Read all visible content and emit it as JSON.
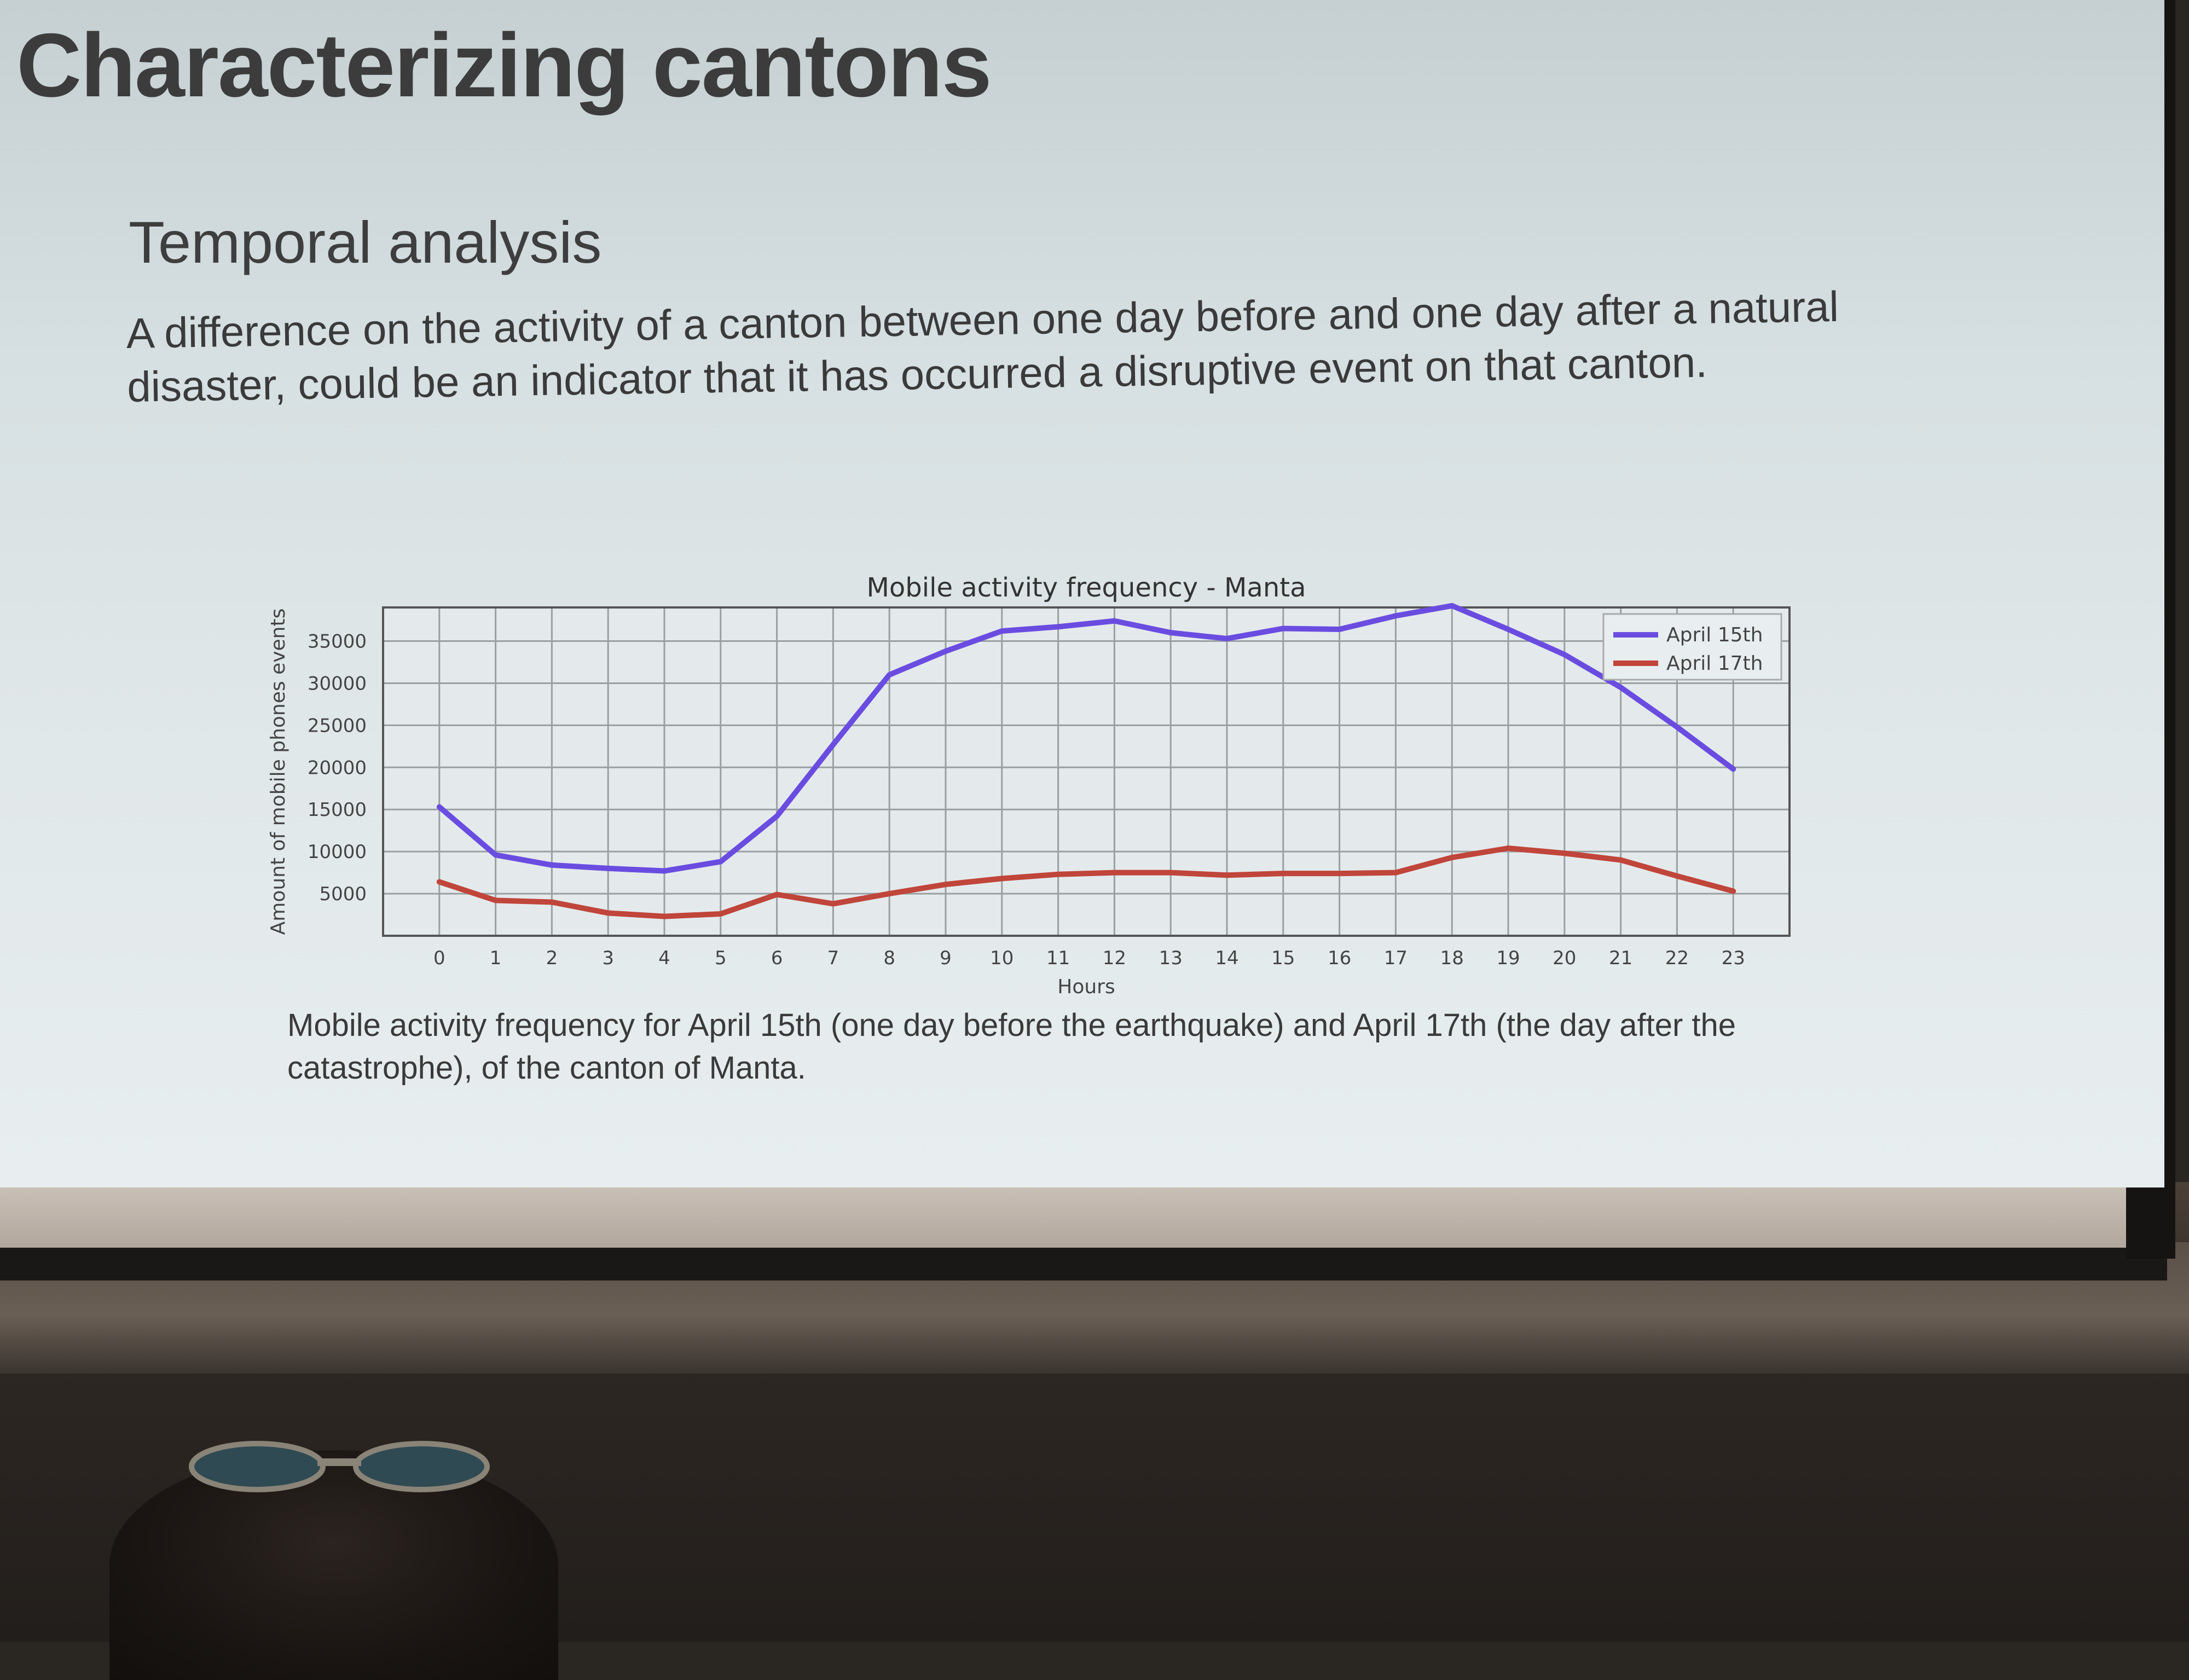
{
  "slide": {
    "title": "Characterizing cantons",
    "subtitle": "Temporal analysis",
    "body": "A difference on the activity of a canton between one day before and one day after a natural disaster, could be an indicator that it has occurred a disruptive event on that canton.",
    "caption": "Mobile activity frequency for April 15th (one day before the earthquake) and April 17th (the day after the catastrophe), of the canton of Manta.",
    "background_color": "#dde4e6"
  },
  "chart_data": {
    "type": "line",
    "title": "Mobile activity frequency - Manta",
    "xlabel": "Hours",
    "ylabel": "Amount of mobile phones events",
    "x": [
      0,
      1,
      2,
      3,
      4,
      5,
      6,
      7,
      8,
      9,
      10,
      11,
      12,
      13,
      14,
      15,
      16,
      17,
      18,
      19,
      20,
      21,
      22,
      23
    ],
    "x_ticks": [
      "0",
      "1",
      "2",
      "3",
      "4",
      "5",
      "6",
      "7",
      "8",
      "9",
      "10",
      "11",
      "12",
      "13",
      "14",
      "15",
      "16",
      "17",
      "18",
      "19",
      "20",
      "21",
      "22",
      "23"
    ],
    "y_ticks": [
      5000,
      10000,
      15000,
      20000,
      25000,
      30000,
      35000
    ],
    "y_tick_labels": [
      "5000",
      "10000",
      "15000",
      "20000",
      "25000",
      "30000",
      "35000"
    ],
    "xlim": [
      -1,
      24
    ],
    "ylim": [
      0,
      39000
    ],
    "grid": true,
    "legend_position": "top-right",
    "series": [
      {
        "name": "April 15th",
        "color": "#6a4de0",
        "values": [
          15300,
          9600,
          8400,
          8000,
          7700,
          8800,
          14200,
          22700,
          31000,
          33800,
          36200,
          36700,
          37400,
          36000,
          35300,
          36500,
          36400,
          38000,
          39200,
          36400,
          33400,
          29500,
          24800,
          19800
        ]
      },
      {
        "name": "April 17th",
        "color": "#c0453a",
        "values": [
          6400,
          4200,
          4000,
          2700,
          2300,
          2600,
          4900,
          3800,
          5000,
          6100,
          6800,
          7300,
          7500,
          7500,
          7200,
          7400,
          7400,
          7500,
          9300,
          10400,
          9800,
          9000,
          7100,
          5300
        ]
      }
    ]
  }
}
